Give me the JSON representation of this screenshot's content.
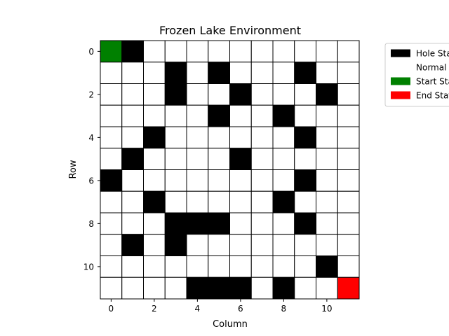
{
  "title": "Frozen Lake Environment",
  "xlabel": "Column",
  "ylabel": "Row",
  "grid": {
    "rows": 12,
    "cols": 12,
    "start": [
      0,
      0
    ],
    "end": [
      11,
      11
    ],
    "holes": [
      [
        0,
        1
      ],
      [
        1,
        3
      ],
      [
        1,
        5
      ],
      [
        1,
        9
      ],
      [
        2,
        3
      ],
      [
        2,
        6
      ],
      [
        2,
        10
      ],
      [
        3,
        5
      ],
      [
        3,
        8
      ],
      [
        4,
        2
      ],
      [
        4,
        9
      ],
      [
        5,
        1
      ],
      [
        5,
        6
      ],
      [
        6,
        0
      ],
      [
        6,
        9
      ],
      [
        7,
        2
      ],
      [
        7,
        8
      ],
      [
        8,
        3
      ],
      [
        8,
        4
      ],
      [
        8,
        5
      ],
      [
        8,
        9
      ],
      [
        9,
        1
      ],
      [
        9,
        3
      ],
      [
        10,
        10
      ],
      [
        11,
        4
      ],
      [
        11,
        5
      ],
      [
        11,
        6
      ],
      [
        11,
        8
      ]
    ]
  },
  "xticks": [
    "0",
    "2",
    "4",
    "6",
    "8",
    "10"
  ],
  "yticks": [
    "0",
    "2",
    "4",
    "6",
    "8",
    "10"
  ],
  "colors": {
    "hole": "#000000",
    "normal": "#ffffff",
    "start": "#008000",
    "end": "#ff0000"
  },
  "legend": {
    "placement": "upper-right-outside",
    "items": [
      {
        "key": "hole",
        "label": "Hole State"
      },
      {
        "key": "normal",
        "label": "Normal State"
      },
      {
        "key": "start",
        "label": "Start State"
      },
      {
        "key": "end",
        "label": "End State"
      }
    ]
  }
}
